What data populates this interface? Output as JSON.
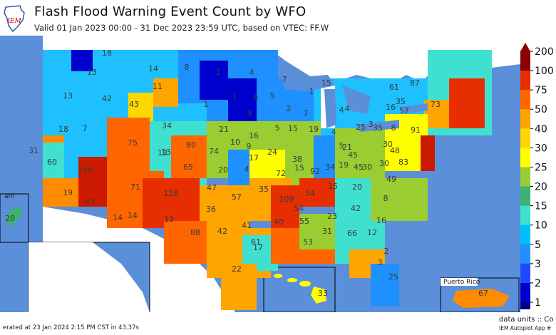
{
  "header": {
    "title": "Flash Flood Warning Event Count by WFO",
    "subtitle": "Valid 01 Jan 2023 00:00 - 31 Dec 2023 23:59 UTC, based on VTEC: FF.W",
    "logo_text": "IEM"
  },
  "insets": {
    "guam": "am",
    "puerto_rico": "Puerto Rico"
  },
  "legend": {
    "ticks": [
      "1",
      "2",
      "3",
      "5",
      "10",
      "15",
      "20",
      "25",
      "30",
      "40",
      "50",
      "75",
      "100",
      "200"
    ],
    "colors": [
      "#00008b",
      "#0000cd",
      "#1e4bff",
      "#1e90ff",
      "#00bfff",
      "#40e0d0",
      "#3cb371",
      "#9acd32",
      "#ffff00",
      "#ffd700",
      "#ffa500",
      "#ff6600",
      "#e62e00",
      "#8b0000"
    ]
  },
  "footer": {
    "generated": "erated at 23 Jan 2024 2:15 PM CST in 43.37s",
    "units": "data units :: Co",
    "autoplot": "IEM Autoplot App #"
  },
  "wfo_counts": [
    "18",
    "14",
    "8",
    "1",
    "4",
    "15",
    "13",
    "1",
    "7",
    "6",
    "13",
    "42",
    "43",
    "11",
    "1",
    "5",
    "1",
    "61",
    "87",
    "35",
    "73",
    "16",
    "57",
    "91",
    "8",
    "7",
    "9",
    "2",
    "7",
    "4",
    "5",
    "4",
    "25",
    "3",
    "18",
    "7",
    "75",
    "34",
    "21",
    "16",
    "5",
    "15",
    "19",
    "4",
    "21",
    "35",
    "30",
    "48",
    "83",
    "31",
    "13",
    "80",
    "10",
    "9",
    "17",
    "38",
    "34",
    "19",
    "45",
    "60",
    "146",
    "74",
    "13",
    "65",
    "20",
    "4",
    "24",
    "72",
    "15",
    "92",
    "30",
    "49",
    "30",
    "19",
    "71",
    "128",
    "47",
    "57",
    "35",
    "109",
    "54",
    "15",
    "45",
    "20",
    "8",
    "47",
    "14",
    "36",
    "23",
    "42",
    "14",
    "13",
    "88",
    "42",
    "41",
    "40",
    "55",
    "16",
    "54",
    "61",
    "31",
    "66",
    "12",
    "17",
    "53",
    "2",
    "22",
    "3",
    "25",
    "33",
    "67",
    "20"
  ]
}
